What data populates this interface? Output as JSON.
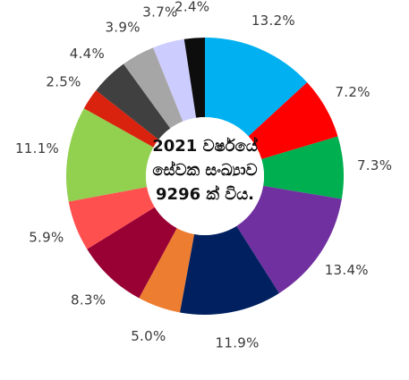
{
  "chart_data": {
    "type": "pie",
    "center_text": [
      "2021 වර්ෂයේ",
      "සේවක සංඛ්‍යාව",
      "9296 ක් විය."
    ],
    "slices": [
      {
        "label": "13.2%",
        "value": 13.2,
        "color": "#00b0f0"
      },
      {
        "label": "7.2%",
        "value": 7.2,
        "color": "#ff0000"
      },
      {
        "label": "7.3%",
        "value": 7.3,
        "color": "#00b050"
      },
      {
        "label": "13.4%",
        "value": 13.4,
        "color": "#7030a0"
      },
      {
        "label": "11.9%",
        "value": 11.9,
        "color": "#002060"
      },
      {
        "label": "5.0%",
        "value": 5.0,
        "color": "#ed7d31"
      },
      {
        "label": "8.3%",
        "value": 8.3,
        "color": "#990033"
      },
      {
        "label": "5.9%",
        "value": 5.9,
        "color": "#ff5050"
      },
      {
        "label": "11.1%",
        "value": 11.1,
        "color": "#92d050"
      },
      {
        "label": "2.5%",
        "value": 2.5,
        "color": "#d9230f"
      },
      {
        "label": "4.4%",
        "value": 4.4,
        "color": "#404040"
      },
      {
        "label": "3.9%",
        "value": 3.9,
        "color": "#a6a6a6"
      },
      {
        "label": "3.7%",
        "value": 3.7,
        "color": "#ccccff"
      },
      {
        "label": "2.4%",
        "value": 2.4,
        "color": "#0d0d0d"
      }
    ]
  }
}
